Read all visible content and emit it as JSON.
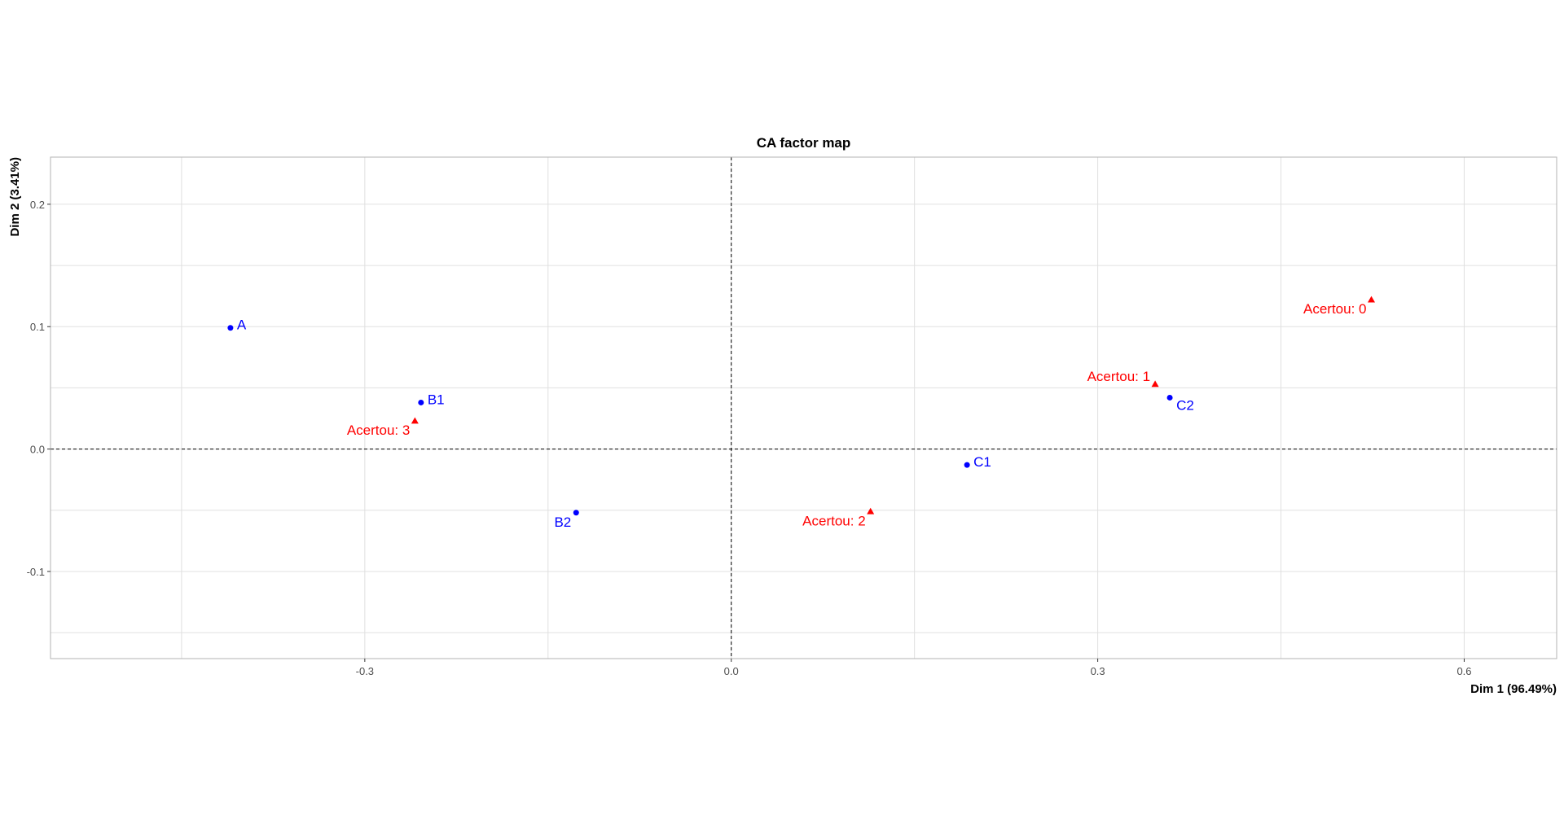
{
  "chart_data": {
    "type": "scatter",
    "title": "CA factor map",
    "xlabel": "Dim 1 (96.49%)",
    "ylabel": "Dim 2 (3.41%)",
    "xlim": [
      -0.5573,
      0.6757
    ],
    "ylim": [
      -0.1712,
      0.2385
    ],
    "xticks": [
      -0.3,
      0.0,
      0.3,
      0.6
    ],
    "xtick_labels": [
      "-0.3",
      "0.0",
      "0.3",
      "0.6"
    ],
    "yticks": [
      -0.1,
      0.0,
      0.1,
      0.2
    ],
    "ytick_labels": [
      "-0.1",
      "0.0",
      "0.1",
      "0.2"
    ],
    "grid": true,
    "reference_lines": {
      "x": 0,
      "y": 0,
      "style": "dashed"
    },
    "series": [
      {
        "marker": "circle",
        "color": "#0000ff",
        "points": [
          {
            "label": "A",
            "x": -0.41,
            "y": 0.099,
            "label_pos": "right"
          },
          {
            "label": "B1",
            "x": -0.254,
            "y": 0.038,
            "label_pos": "right"
          },
          {
            "label": "B2",
            "x": -0.127,
            "y": -0.052,
            "label_pos": "left-below"
          },
          {
            "label": "C1",
            "x": 0.193,
            "y": -0.013,
            "label_pos": "right"
          },
          {
            "label": "C2",
            "x": 0.359,
            "y": 0.042,
            "label_pos": "right-below"
          }
        ]
      },
      {
        "marker": "triangle",
        "color": "#ff0000",
        "points": [
          {
            "label": "Acertou: 0",
            "x": 0.524,
            "y": 0.122,
            "label_pos": "left-below"
          },
          {
            "label": "Acertou: 1",
            "x": 0.347,
            "y": 0.053,
            "label_pos": "left-above"
          },
          {
            "label": "Acertou: 2",
            "x": 0.114,
            "y": -0.051,
            "label_pos": "left-below"
          },
          {
            "label": "Acertou: 3",
            "x": -0.259,
            "y": 0.023,
            "label_pos": "left-below"
          }
        ]
      }
    ]
  }
}
